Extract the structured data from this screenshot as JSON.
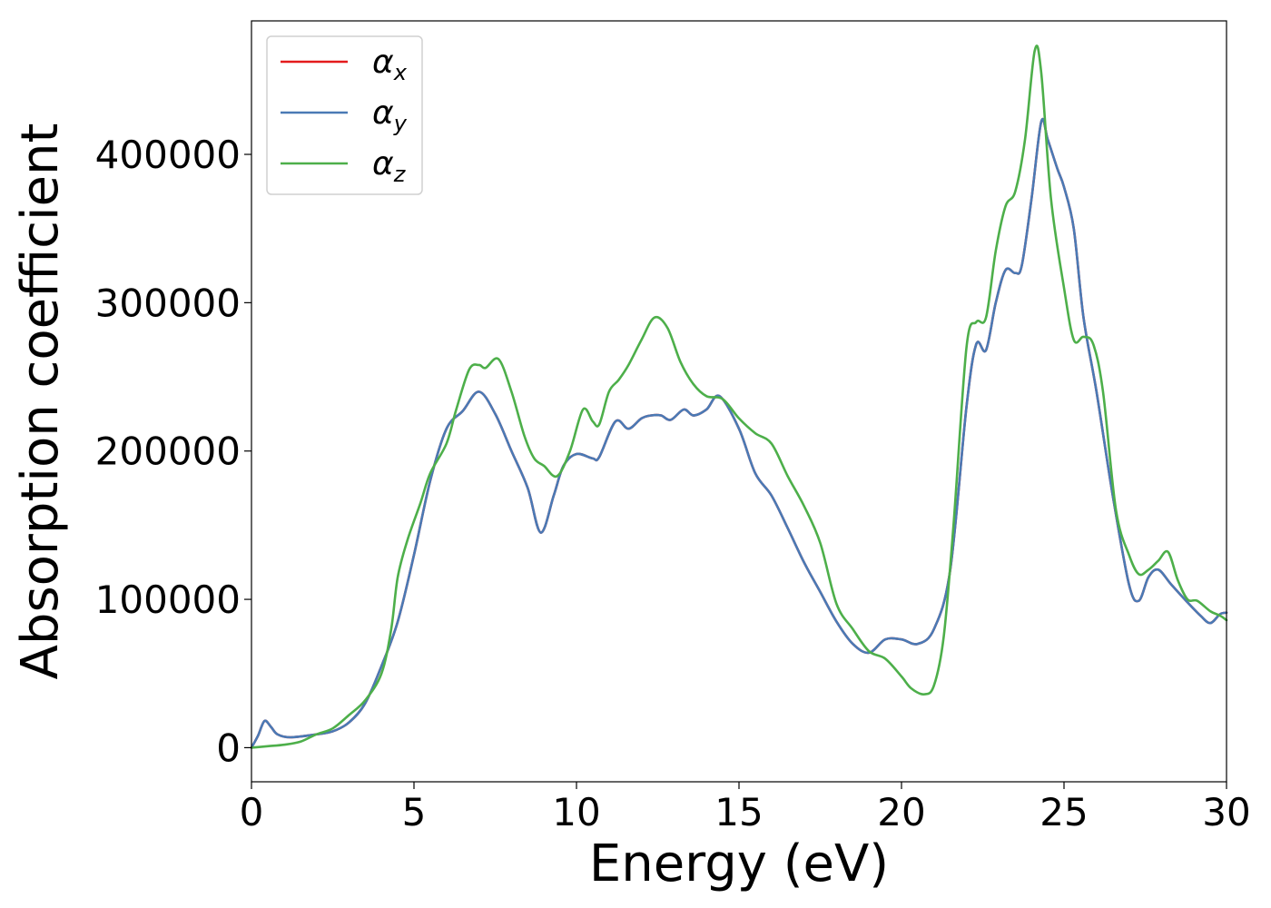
{
  "chart_data": {
    "type": "line",
    "xlabel": "Energy (eV)",
    "ylabel": "Absorption coefficient",
    "xlim": [
      0,
      30
    ],
    "ylim": [
      -23000,
      490000
    ],
    "x_ticks": [
      0,
      5,
      10,
      15,
      20,
      25,
      30
    ],
    "y_ticks": [
      0,
      100000,
      200000,
      300000,
      400000
    ],
    "x_tick_labels": [
      "0",
      "5",
      "10",
      "15",
      "20",
      "25",
      "30"
    ],
    "y_tick_labels": [
      "0",
      "100000",
      "200000",
      "300000",
      "400000"
    ],
    "grid": false,
    "legend_position": "top-left",
    "series": [
      {
        "name": "αx",
        "legend_symbol": "α",
        "legend_subscript": "x",
        "color": "#e41a1c",
        "points": [
          [
            0,
            0
          ],
          [
            0.2,
            8000
          ],
          [
            0.4,
            18000
          ],
          [
            0.6,
            14000
          ],
          [
            0.8,
            9000
          ],
          [
            1.2,
            7000
          ],
          [
            2,
            9000
          ],
          [
            2.5,
            11000
          ],
          [
            3,
            17000
          ],
          [
            3.5,
            30000
          ],
          [
            4,
            55000
          ],
          [
            4.5,
            85000
          ],
          [
            5,
            130000
          ],
          [
            5.5,
            180000
          ],
          [
            6,
            215000
          ],
          [
            6.5,
            227000
          ],
          [
            7,
            240000
          ],
          [
            7.5,
            225000
          ],
          [
            8,
            200000
          ],
          [
            8.5,
            175000
          ],
          [
            8.9,
            145000
          ],
          [
            9.3,
            170000
          ],
          [
            9.6,
            190000
          ],
          [
            10,
            198000
          ],
          [
            10.5,
            195000
          ],
          [
            10.7,
            196000
          ],
          [
            11.2,
            220000
          ],
          [
            11.6,
            215000
          ],
          [
            12,
            222000
          ],
          [
            12.3,
            224000
          ],
          [
            12.6,
            224000
          ],
          [
            12.9,
            221000
          ],
          [
            13.3,
            228000
          ],
          [
            13.6,
            224000
          ],
          [
            14,
            228000
          ],
          [
            14.4,
            237000
          ],
          [
            15,
            215000
          ],
          [
            15.5,
            185000
          ],
          [
            16,
            170000
          ],
          [
            16.5,
            148000
          ],
          [
            17,
            125000
          ],
          [
            17.5,
            105000
          ],
          [
            18,
            85000
          ],
          [
            18.5,
            70000
          ],
          [
            19,
            64000
          ],
          [
            19.5,
            73000
          ],
          [
            20,
            73000
          ],
          [
            20.5,
            70000
          ],
          [
            21,
            80000
          ],
          [
            21.5,
            120000
          ],
          [
            22,
            230000
          ],
          [
            22.3,
            272000
          ],
          [
            22.6,
            268000
          ],
          [
            22.9,
            300000
          ],
          [
            23.2,
            322000
          ],
          [
            23.5,
            320000
          ],
          [
            23.7,
            325000
          ],
          [
            24,
            370000
          ],
          [
            24.3,
            422000
          ],
          [
            24.5,
            410000
          ],
          [
            24.8,
            390000
          ],
          [
            25,
            378000
          ],
          [
            25.3,
            350000
          ],
          [
            25.6,
            290000
          ],
          [
            26,
            240000
          ],
          [
            26.5,
            170000
          ],
          [
            27,
            110000
          ],
          [
            27.3,
            99000
          ],
          [
            27.6,
            115000
          ],
          [
            27.9,
            120000
          ],
          [
            28.3,
            110000
          ],
          [
            28.8,
            98000
          ],
          [
            29.2,
            89000
          ],
          [
            29.5,
            84000
          ],
          [
            29.8,
            90000
          ],
          [
            30,
            91000
          ]
        ]
      },
      {
        "name": "αy",
        "legend_symbol": "α",
        "legend_subscript": "y",
        "color": "#4a7ab5",
        "points": [
          [
            0,
            0
          ],
          [
            0.2,
            8000
          ],
          [
            0.4,
            18000
          ],
          [
            0.6,
            14000
          ],
          [
            0.8,
            9000
          ],
          [
            1.2,
            7000
          ],
          [
            2,
            9000
          ],
          [
            2.5,
            11000
          ],
          [
            3,
            17000
          ],
          [
            3.5,
            30000
          ],
          [
            4,
            55000
          ],
          [
            4.5,
            85000
          ],
          [
            5,
            130000
          ],
          [
            5.5,
            180000
          ],
          [
            6,
            215000
          ],
          [
            6.5,
            227000
          ],
          [
            7,
            240000
          ],
          [
            7.5,
            225000
          ],
          [
            8,
            200000
          ],
          [
            8.5,
            175000
          ],
          [
            8.9,
            145000
          ],
          [
            9.3,
            170000
          ],
          [
            9.6,
            190000
          ],
          [
            10,
            198000
          ],
          [
            10.5,
            195000
          ],
          [
            10.7,
            196000
          ],
          [
            11.2,
            220000
          ],
          [
            11.6,
            215000
          ],
          [
            12,
            222000
          ],
          [
            12.3,
            224000
          ],
          [
            12.6,
            224000
          ],
          [
            12.9,
            221000
          ],
          [
            13.3,
            228000
          ],
          [
            13.6,
            224000
          ],
          [
            14,
            228000
          ],
          [
            14.4,
            237000
          ],
          [
            15,
            215000
          ],
          [
            15.5,
            185000
          ],
          [
            16,
            170000
          ],
          [
            16.5,
            148000
          ],
          [
            17,
            125000
          ],
          [
            17.5,
            105000
          ],
          [
            18,
            85000
          ],
          [
            18.5,
            70000
          ],
          [
            19,
            64000
          ],
          [
            19.5,
            73000
          ],
          [
            20,
            73000
          ],
          [
            20.5,
            70000
          ],
          [
            21,
            80000
          ],
          [
            21.5,
            120000
          ],
          [
            22,
            230000
          ],
          [
            22.3,
            272000
          ],
          [
            22.6,
            268000
          ],
          [
            22.9,
            300000
          ],
          [
            23.2,
            322000
          ],
          [
            23.5,
            320000
          ],
          [
            23.7,
            325000
          ],
          [
            24,
            370000
          ],
          [
            24.3,
            422000
          ],
          [
            24.5,
            410000
          ],
          [
            24.8,
            390000
          ],
          [
            25,
            378000
          ],
          [
            25.3,
            350000
          ],
          [
            25.6,
            290000
          ],
          [
            26,
            240000
          ],
          [
            26.5,
            170000
          ],
          [
            27,
            110000
          ],
          [
            27.3,
            99000
          ],
          [
            27.6,
            115000
          ],
          [
            27.9,
            120000
          ],
          [
            28.3,
            110000
          ],
          [
            28.8,
            98000
          ],
          [
            29.2,
            89000
          ],
          [
            29.5,
            84000
          ],
          [
            29.8,
            90000
          ],
          [
            30,
            91000
          ]
        ]
      },
      {
        "name": "αz",
        "legend_symbol": "α",
        "legend_subscript": "z",
        "color": "#4daf4a",
        "points": [
          [
            0,
            0
          ],
          [
            0.5,
            1000
          ],
          [
            1,
            2000
          ],
          [
            1.5,
            4000
          ],
          [
            2,
            9000
          ],
          [
            2.5,
            13000
          ],
          [
            3,
            22000
          ],
          [
            3.5,
            32000
          ],
          [
            4,
            50000
          ],
          [
            4.3,
            80000
          ],
          [
            4.5,
            115000
          ],
          [
            4.8,
            140000
          ],
          [
            5.2,
            165000
          ],
          [
            5.5,
            185000
          ],
          [
            6,
            205000
          ],
          [
            6.3,
            228000
          ],
          [
            6.7,
            255000
          ],
          [
            7,
            258000
          ],
          [
            7.2,
            256000
          ],
          [
            7.6,
            262000
          ],
          [
            8,
            240000
          ],
          [
            8.4,
            210000
          ],
          [
            8.7,
            195000
          ],
          [
            9,
            190000
          ],
          [
            9.4,
            183000
          ],
          [
            9.8,
            200000
          ],
          [
            10.2,
            228000
          ],
          [
            10.5,
            220000
          ],
          [
            10.7,
            218000
          ],
          [
            11,
            240000
          ],
          [
            11.3,
            248000
          ],
          [
            11.6,
            258000
          ],
          [
            12,
            275000
          ],
          [
            12.4,
            290000
          ],
          [
            12.8,
            283000
          ],
          [
            13.2,
            260000
          ],
          [
            13.6,
            245000
          ],
          [
            14,
            237000
          ],
          [
            14.5,
            235000
          ],
          [
            15,
            222000
          ],
          [
            15.5,
            212000
          ],
          [
            16,
            205000
          ],
          [
            16.5,
            183000
          ],
          [
            17,
            163000
          ],
          [
            17.5,
            138000
          ],
          [
            18,
            97000
          ],
          [
            18.5,
            80000
          ],
          [
            19,
            65000
          ],
          [
            19.5,
            60000
          ],
          [
            20,
            48000
          ],
          [
            20.3,
            40000
          ],
          [
            20.7,
            36000
          ],
          [
            21,
            42000
          ],
          [
            21.3,
            75000
          ],
          [
            21.6,
            150000
          ],
          [
            22,
            270000
          ],
          [
            22.3,
            287000
          ],
          [
            22.6,
            290000
          ],
          [
            22.9,
            335000
          ],
          [
            23.2,
            365000
          ],
          [
            23.5,
            375000
          ],
          [
            23.8,
            410000
          ],
          [
            24.1,
            470000
          ],
          [
            24.3,
            455000
          ],
          [
            24.6,
            370000
          ],
          [
            25,
            310000
          ],
          [
            25.3,
            275000
          ],
          [
            25.6,
            277000
          ],
          [
            25.9,
            272000
          ],
          [
            26.2,
            240000
          ],
          [
            26.6,
            160000
          ],
          [
            27,
            130000
          ],
          [
            27.3,
            117000
          ],
          [
            27.6,
            120000
          ],
          [
            27.9,
            126000
          ],
          [
            28.2,
            132000
          ],
          [
            28.5,
            113000
          ],
          [
            28.8,
            100000
          ],
          [
            29.1,
            99000
          ],
          [
            29.5,
            92000
          ],
          [
            29.8,
            89000
          ],
          [
            30,
            86000
          ]
        ]
      }
    ]
  }
}
